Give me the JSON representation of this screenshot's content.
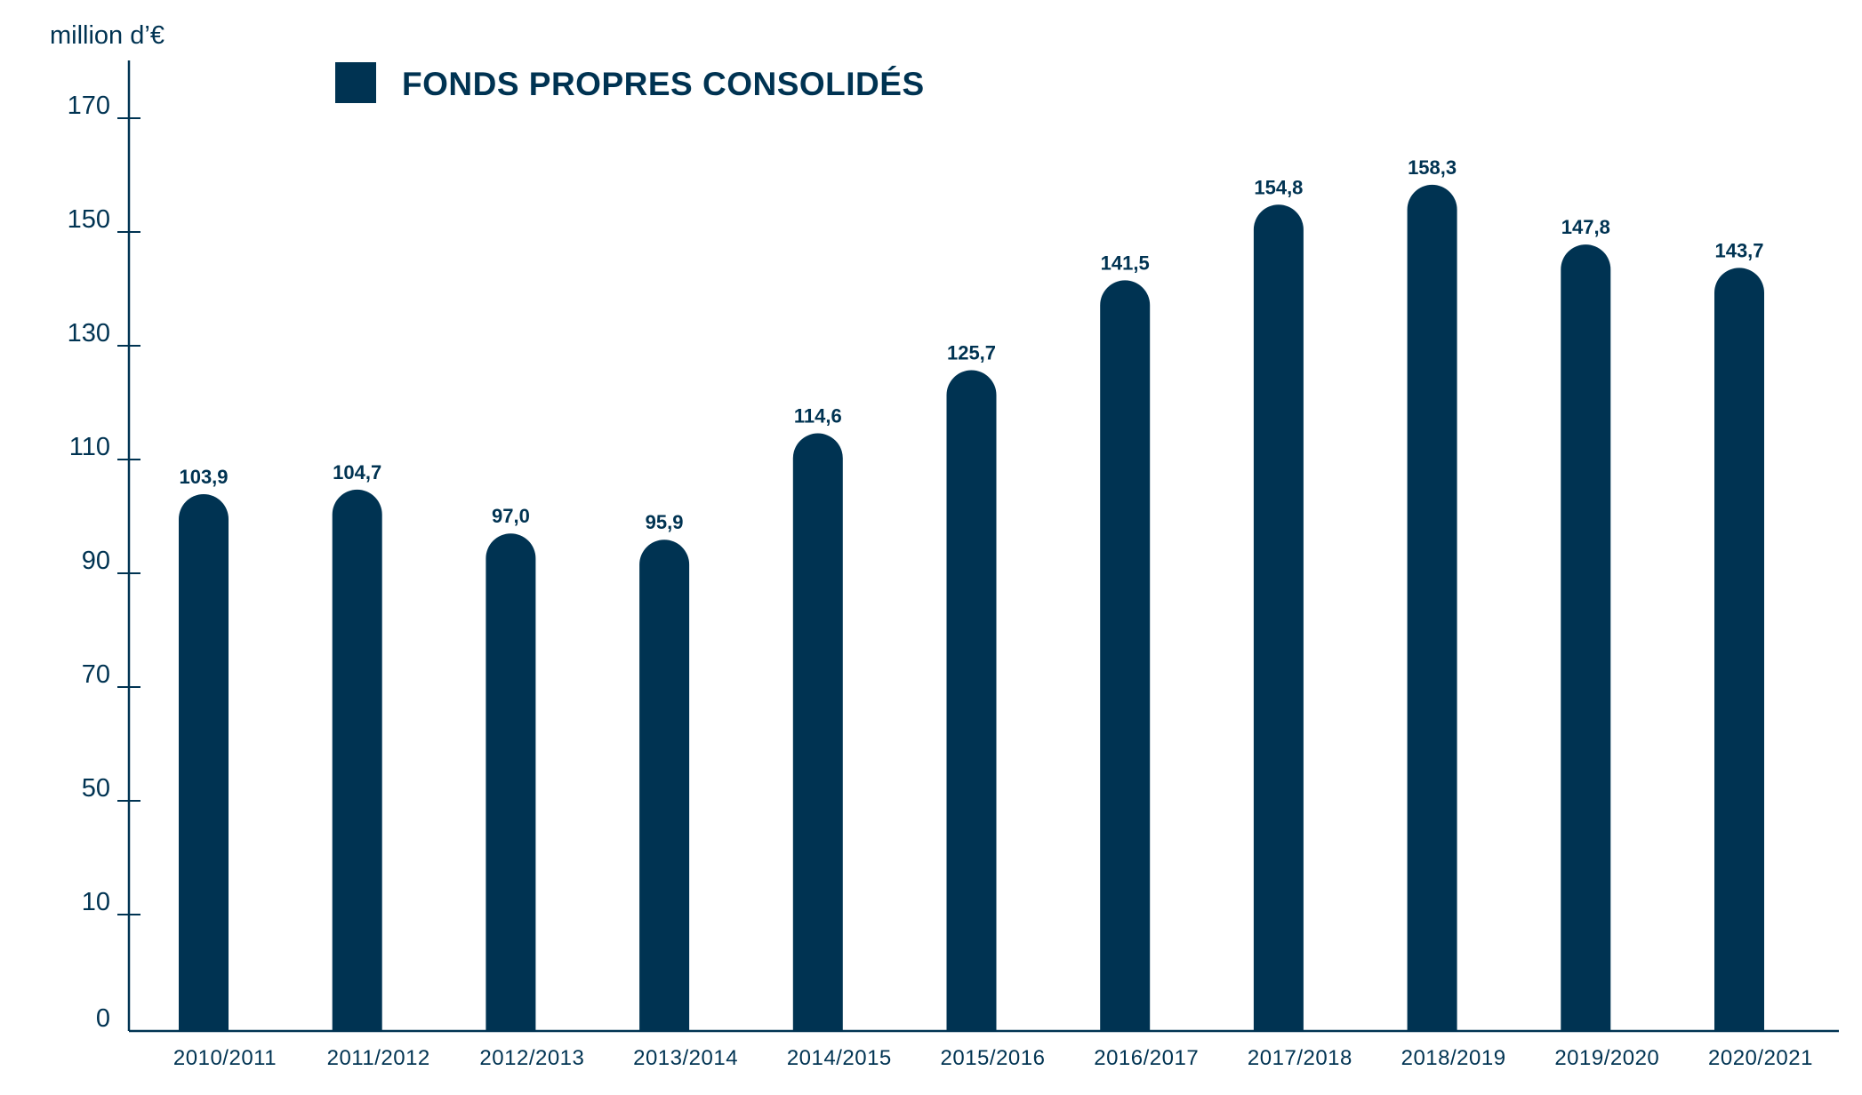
{
  "chart_data": {
    "type": "bar",
    "unit_label": "million d’€",
    "legend": [
      {
        "label": "FONDS PROPRES CONSOLIDÉS",
        "color": "#003352"
      }
    ],
    "categories": [
      "2010/2011",
      "2011/2012",
      "2012/2013",
      "2013/2014",
      "2014/2015",
      "2015/2016",
      "2016/2017",
      "2017/2018",
      "2018/2019",
      "2019/2020",
      "2020/2021"
    ],
    "series": [
      {
        "name": "FONDS PROPRES CONSOLIDÉS",
        "color": "#003352",
        "values": [
          103.9,
          104.7,
          97.0,
          95.9,
          114.6,
          125.7,
          141.5,
          154.8,
          158.3,
          147.8,
          143.7
        ],
        "labels": [
          "103,9",
          "104,7",
          "97,0",
          "95,9",
          "114,6",
          "125,7",
          "141,5",
          "154,8",
          "158,3",
          "147,8",
          "143,7"
        ]
      }
    ],
    "y_ticks": [
      "0",
      "10",
      "50",
      "70",
      "90",
      "110",
      "130",
      "150",
      "170"
    ],
    "axis_color": "#003352",
    "grid": false,
    "legend_position": "top-left"
  }
}
